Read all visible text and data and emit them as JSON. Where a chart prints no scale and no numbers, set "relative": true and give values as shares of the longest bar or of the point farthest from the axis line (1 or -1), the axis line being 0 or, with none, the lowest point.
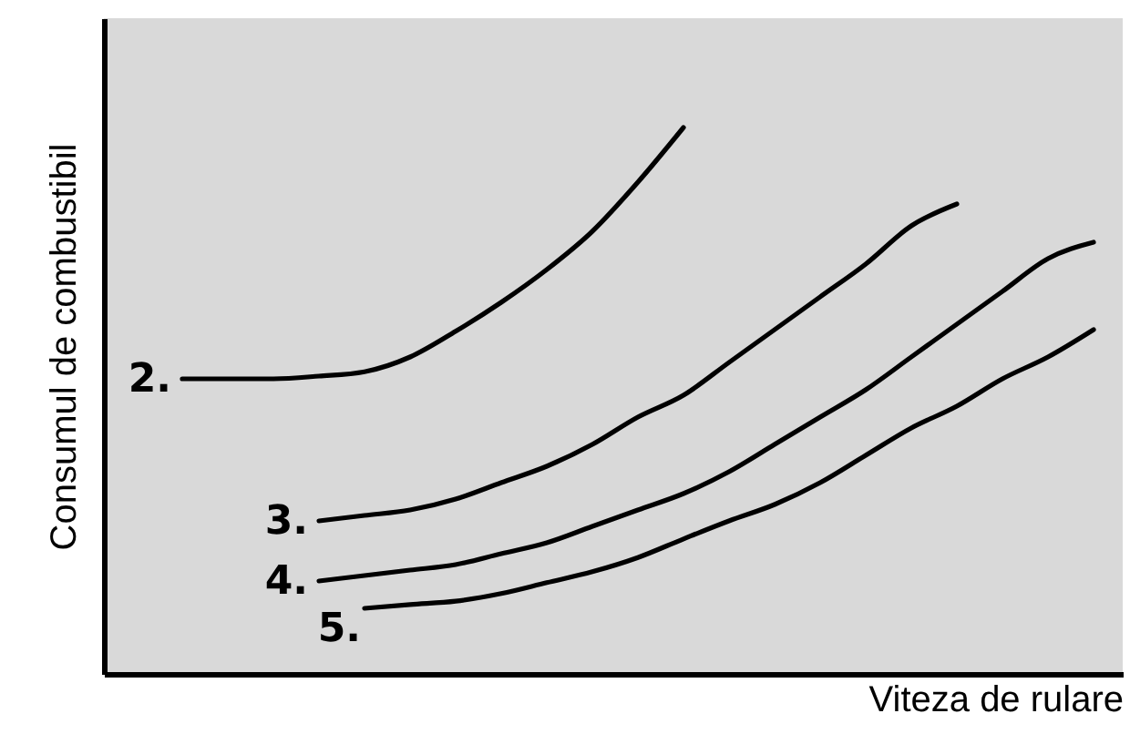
{
  "chart_data": {
    "type": "line",
    "relative": true,
    "xlabel": "Viteza de rulare",
    "ylabel": "Consumul de combustibil",
    "categories": [
      null,
      null,
      null,
      null,
      null,
      null,
      null,
      null,
      null,
      null,
      null,
      null,
      null,
      null,
      null,
      null,
      null,
      null,
      null,
      null,
      null
    ],
    "series": [
      {
        "name": "2.",
        "color": "#000000",
        "values": [
          0.54,
          0.54,
          0.54,
          0.545,
          0.553,
          0.58,
          0.627,
          0.68,
          0.74,
          0.81,
          0.9,
          1.0,
          null,
          null,
          null,
          null,
          null,
          null,
          null,
          null,
          null
        ]
      },
      {
        "name": "3.",
        "color": "#000000",
        "values": [
          null,
          null,
          null,
          0.28,
          0.29,
          0.3,
          0.32,
          0.35,
          0.38,
          0.42,
          0.47,
          0.51,
          0.57,
          0.63,
          0.69,
          0.75,
          0.82,
          0.86,
          null,
          null,
          null
        ]
      },
      {
        "name": "4.",
        "color": "#000000",
        "values": [
          null,
          null,
          null,
          0.17,
          0.18,
          0.19,
          0.2,
          0.22,
          0.24,
          0.27,
          0.3,
          0.33,
          0.37,
          0.42,
          0.47,
          0.52,
          0.58,
          0.64,
          0.7,
          0.76,
          0.79
        ]
      },
      {
        "name": "5.",
        "color": "#000000",
        "values": [
          null,
          null,
          null,
          null,
          0.12,
          0.127,
          0.133,
          0.147,
          0.167,
          0.187,
          0.213,
          0.247,
          0.28,
          0.31,
          0.35,
          0.4,
          0.45,
          0.49,
          0.54,
          0.58,
          0.63
        ]
      }
    ],
    "grid": false,
    "marker": "none",
    "line_style": "solid"
  }
}
